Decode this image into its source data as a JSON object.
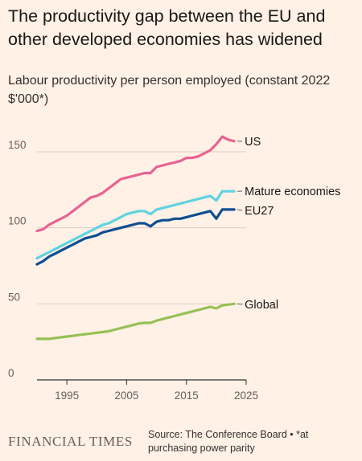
{
  "header": {
    "title": "The productivity gap between the EU and other developed economies has widened",
    "subtitle": "Labour productivity per person employed (constant 2022 $'000*)"
  },
  "footer": {
    "logo": "FINANCIAL TIMES",
    "source": "Source: The Conference Board • *at purchasing power parity"
  },
  "colors": {
    "background": "#fff1e5",
    "gridline": "#d9cdc2",
    "axis": "#33302e",
    "US": "#e76393",
    "Mature economies": "#5fd3e0",
    "EU27": "#0f4d92",
    "Global": "#96c055"
  },
  "chart_data": {
    "type": "line",
    "ylim": [
      0,
      160
    ],
    "xlim": [
      1990,
      2025
    ],
    "yticks": [
      0,
      50,
      100,
      150
    ],
    "xticks": [
      1995,
      2005,
      2015,
      2025
    ],
    "grid": "horizontal",
    "x": [
      1990,
      1991,
      1992,
      1993,
      1994,
      1995,
      1996,
      1997,
      1998,
      1999,
      2000,
      2001,
      2002,
      2003,
      2004,
      2005,
      2006,
      2007,
      2008,
      2009,
      2010,
      2011,
      2012,
      2013,
      2014,
      2015,
      2016,
      2017,
      2018,
      2019,
      2020,
      2021,
      2022,
      2023
    ],
    "series": [
      {
        "name": "US",
        "values": [
          98,
          99,
          102,
          104,
          106,
          108,
          111,
          114,
          117,
          120,
          121,
          123,
          126,
          129,
          132,
          133,
          134,
          135,
          136,
          136,
          140,
          141,
          142,
          143,
          144,
          146,
          146,
          147,
          149,
          151,
          155,
          160,
          158,
          157
        ]
      },
      {
        "name": "Mature economies",
        "values": [
          80,
          82,
          84,
          86,
          88,
          90,
          92,
          94,
          96,
          98,
          100,
          102,
          103,
          105,
          107,
          109,
          110,
          111,
          111,
          109,
          112,
          113,
          114,
          115,
          116,
          117,
          118,
          119,
          120,
          121,
          118,
          124,
          124,
          124
        ]
      },
      {
        "name": "EU27",
        "values": [
          76,
          78,
          81,
          83,
          85,
          87,
          89,
          91,
          93,
          94,
          95,
          97,
          98,
          99,
          100,
          101,
          102,
          103,
          103,
          101,
          104,
          105,
          105,
          106,
          106,
          107,
          108,
          109,
          110,
          111,
          106,
          112,
          112,
          112
        ]
      },
      {
        "name": "Global",
        "values": [
          27,
          27,
          27,
          27.5,
          28,
          28.5,
          29,
          29.5,
          30,
          30.5,
          31,
          31.5,
          32,
          33,
          34,
          35,
          36,
          37,
          37.5,
          37.5,
          39,
          40,
          41,
          42,
          43,
          44,
          45,
          46,
          47,
          48,
          47,
          49,
          49.5,
          50
        ]
      }
    ]
  }
}
